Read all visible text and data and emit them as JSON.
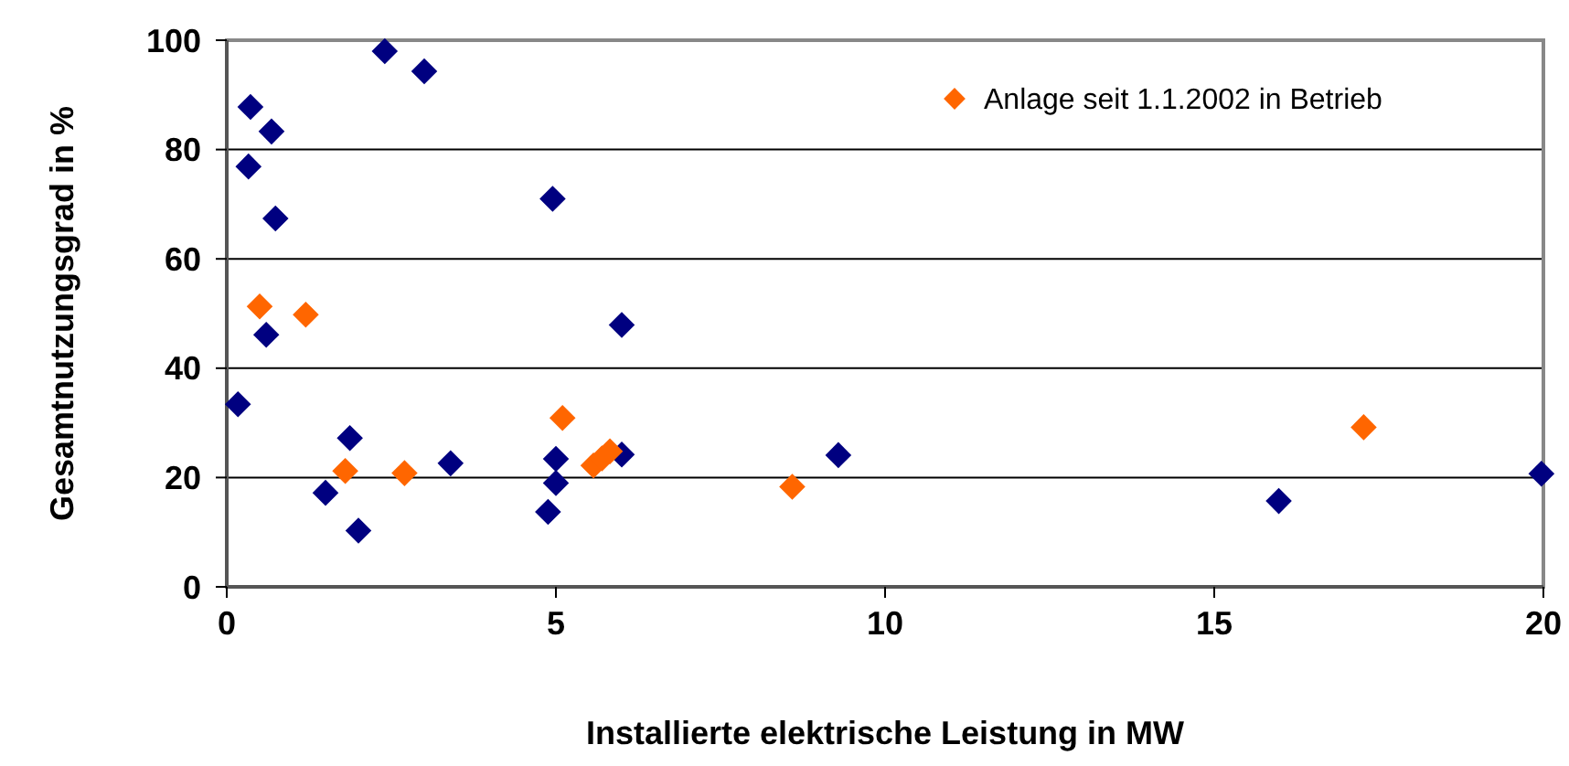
{
  "chart_data": {
    "type": "scatter",
    "xlabel": "Installierte elektrische Leistung in MW",
    "ylabel": "Gesamtnutzungsgrad in %",
    "xlim": [
      0,
      20
    ],
    "xticks": [
      0,
      5,
      10,
      15,
      20
    ],
    "ylim": [
      0,
      100
    ],
    "yticks": [
      0,
      20,
      40,
      60,
      80,
      100
    ],
    "grid": "y",
    "legend": "top right",
    "marker": "diamond",
    "series": [
      {
        "color": "#000080",
        "x": [
          0.17,
          0.36,
          0.68,
          0.33,
          0.74,
          0.6,
          2.4,
          3.0,
          4.95,
          6.0,
          1.87,
          1.5,
          2.0,
          3.4,
          5.0,
          5.0,
          4.88,
          6.0,
          9.29,
          15.98,
          19.97
        ],
        "values": [
          33.4,
          87.8,
          83.3,
          76.9,
          67.4,
          46.1,
          98,
          94.3,
          71,
          47.9,
          27.2,
          17.2,
          10.3,
          22.6,
          23.4,
          19,
          13.7,
          24.2,
          24.1,
          15.7,
          20.7
        ]
      },
      {
        "name": "Anlage seit 1.1.2002 in Betrieb",
        "color": "#ff6600",
        "x": [
          0.5,
          1.2,
          1.8,
          2.7,
          5.1,
          5.57,
          5.7,
          5.82,
          8.59,
          17.27
        ],
        "values": [
          51.3,
          49.8,
          21.2,
          20.8,
          30.9,
          22.2,
          23.5,
          24.8,
          18.3,
          29.2
        ]
      }
    ]
  }
}
